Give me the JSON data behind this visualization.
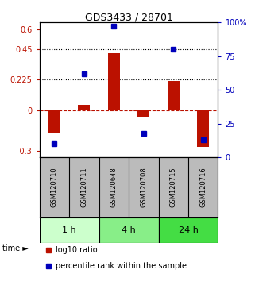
{
  "title": "GDS3433 / 28701",
  "samples": [
    "GSM120710",
    "GSM120711",
    "GSM120648",
    "GSM120708",
    "GSM120715",
    "GSM120716"
  ],
  "log10_ratio": [
    -0.17,
    0.04,
    0.42,
    -0.055,
    0.215,
    -0.27
  ],
  "percentile_rank": [
    10,
    62,
    97,
    18,
    80,
    13
  ],
  "time_groups": [
    {
      "label": "1 h",
      "start": 0,
      "end": 1,
      "color": "#ccffcc"
    },
    {
      "label": "4 h",
      "start": 2,
      "end": 3,
      "color": "#88ee88"
    },
    {
      "label": "24 h",
      "start": 4,
      "end": 5,
      "color": "#44dd44"
    }
  ],
  "ylim_left": [
    -0.35,
    0.65
  ],
  "ylim_right": [
    0,
    100
  ],
  "yticks_left": [
    -0.3,
    0,
    0.225,
    0.45,
    0.6
  ],
  "yticks_right": [
    0,
    25,
    50,
    75,
    100
  ],
  "hlines": [
    0.45,
    0.225
  ],
  "bar_color": "#bb1100",
  "dot_color": "#0000bb",
  "background_color": "#ffffff",
  "label_bg": "#bbbbbb",
  "title_fontsize": 9,
  "tick_fontsize": 7,
  "sample_fontsize": 6,
  "time_fontsize": 8
}
